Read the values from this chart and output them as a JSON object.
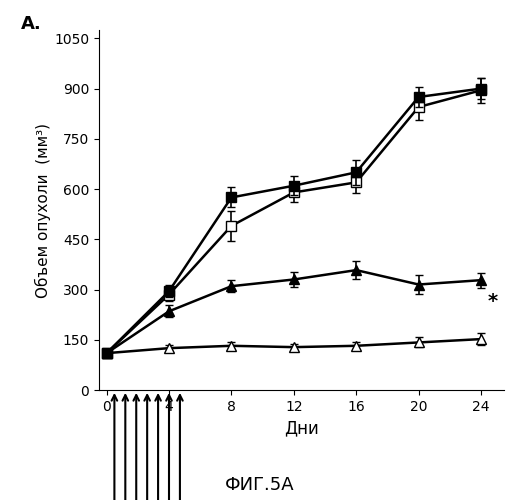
{
  "x": [
    0,
    4,
    8,
    12,
    16,
    20,
    24
  ],
  "series": {
    "filled_square": {
      "y": [
        110,
        295,
        575,
        610,
        650,
        875,
        900
      ],
      "yerr": [
        10,
        18,
        30,
        28,
        38,
        30,
        32
      ]
    },
    "open_square": {
      "y": [
        110,
        285,
        490,
        590,
        620,
        845,
        895
      ],
      "yerr": [
        10,
        18,
        45,
        28,
        32,
        38,
        38
      ]
    },
    "filled_triangle": {
      "y": [
        110,
        235,
        310,
        330,
        358,
        315,
        328
      ],
      "yerr": [
        10,
        18,
        18,
        22,
        28,
        28,
        22
      ]
    },
    "open_triangle": {
      "y": [
        110,
        125,
        132,
        128,
        132,
        142,
        152
      ],
      "yerr": [
        10,
        10,
        10,
        10,
        10,
        15,
        18
      ]
    }
  },
  "xlabel": "Дни",
  "ylabel": "Объем опухоли  (мм³)",
  "title_label": "ФИГ.5А",
  "panel_label": "А.",
  "ylim": [
    0,
    1075
  ],
  "xlim": [
    -0.5,
    25.5
  ],
  "yticks": [
    0,
    150,
    300,
    450,
    600,
    750,
    900,
    1050
  ],
  "xticks": [
    0,
    4,
    8,
    12,
    16,
    20,
    24
  ],
  "star_x": 24.4,
  "star_y": 265,
  "arrow_days": [
    0.5,
    1.2,
    1.9,
    2.6,
    3.3,
    4.0,
    4.7
  ]
}
